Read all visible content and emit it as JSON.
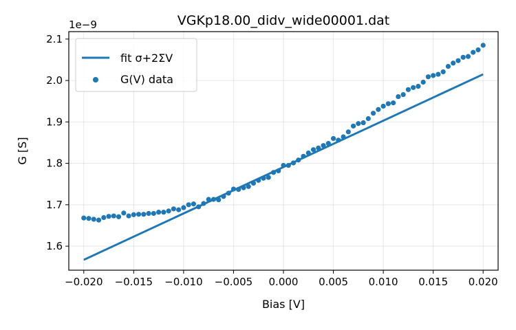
{
  "chart_data": {
    "type": "scatter",
    "title": "VGKp18.00_didv_wide00001.dat",
    "xlabel": "Bias [V]",
    "ylabel": "G [S]",
    "y_offset_label": "1e−9",
    "xlim": [
      -0.0215,
      0.0215
    ],
    "ylim": [
      1.542,
      2.118
    ],
    "x_ticks": [
      -0.02,
      -0.015,
      -0.01,
      -0.005,
      0.0,
      0.005,
      0.01,
      0.015,
      0.02
    ],
    "x_tick_labels": [
      "−0.020",
      "−0.015",
      "−0.010",
      "−0.005",
      "0.000",
      "0.005",
      "0.010",
      "0.015",
      "0.020"
    ],
    "y_ticks": [
      1.6,
      1.7,
      1.8,
      1.9,
      2.0,
      2.1
    ],
    "y_tick_labels": [
      "1.6",
      "1.7",
      "1.8",
      "1.9",
      "2.0",
      "2.1"
    ],
    "grid": true,
    "legend_position": "upper-left",
    "colors": {
      "series": "#1f77b4"
    },
    "series": [
      {
        "name": "fit σ+2ΣV",
        "kind": "line",
        "x": [
          -0.02,
          0.02
        ],
        "y": [
          1.567,
          2.015
        ]
      },
      {
        "name": "G(V) data",
        "kind": "scatter",
        "x": [
          -0.02,
          -0.0195,
          -0.019,
          -0.0185,
          -0.018,
          -0.0175,
          -0.017,
          -0.0165,
          -0.016,
          -0.0155,
          -0.015,
          -0.0145,
          -0.014,
          -0.0135,
          -0.013,
          -0.0125,
          -0.012,
          -0.0115,
          -0.011,
          -0.0105,
          -0.01,
          -0.0095,
          -0.009,
          -0.0085,
          -0.008,
          -0.0075,
          -0.007,
          -0.0065,
          -0.006,
          -0.0055,
          -0.005,
          -0.0045,
          -0.004,
          -0.0035,
          -0.003,
          -0.0025,
          -0.002,
          -0.0015,
          -0.001,
          -0.0005,
          0.0,
          0.0005,
          0.001,
          0.0015,
          0.002,
          0.0025,
          0.003,
          0.0035,
          0.004,
          0.0045,
          0.005,
          0.0055,
          0.006,
          0.0065,
          0.007,
          0.0075,
          0.008,
          0.0085,
          0.009,
          0.0095,
          0.01,
          0.0105,
          0.011,
          0.0115,
          0.012,
          0.0125,
          0.013,
          0.0135,
          0.014,
          0.0145,
          0.015,
          0.0155,
          0.016,
          0.0165,
          0.017,
          0.0175,
          0.018,
          0.0185,
          0.019,
          0.0195,
          0.02
        ],
        "y": [
          1.668,
          1.667,
          1.665,
          1.663,
          1.669,
          1.672,
          1.673,
          1.671,
          1.68,
          1.673,
          1.676,
          1.677,
          1.677,
          1.679,
          1.679,
          1.682,
          1.682,
          1.685,
          1.69,
          1.688,
          1.693,
          1.7,
          1.702,
          1.695,
          1.703,
          1.713,
          1.713,
          1.712,
          1.72,
          1.728,
          1.738,
          1.737,
          1.741,
          1.744,
          1.752,
          1.759,
          1.764,
          1.766,
          1.778,
          1.782,
          1.795,
          1.795,
          1.801,
          1.808,
          1.817,
          1.825,
          1.833,
          1.837,
          1.843,
          1.848,
          1.86,
          1.856,
          1.864,
          1.876,
          1.89,
          1.896,
          1.898,
          1.908,
          1.921,
          1.93,
          1.938,
          1.944,
          1.946,
          1.961,
          1.966,
          1.978,
          1.983,
          1.986,
          1.996,
          2.009,
          2.012,
          2.015,
          2.021,
          2.034,
          2.042,
          2.048,
          2.056,
          2.058,
          2.068,
          2.074,
          2.085
        ]
      }
    ]
  }
}
